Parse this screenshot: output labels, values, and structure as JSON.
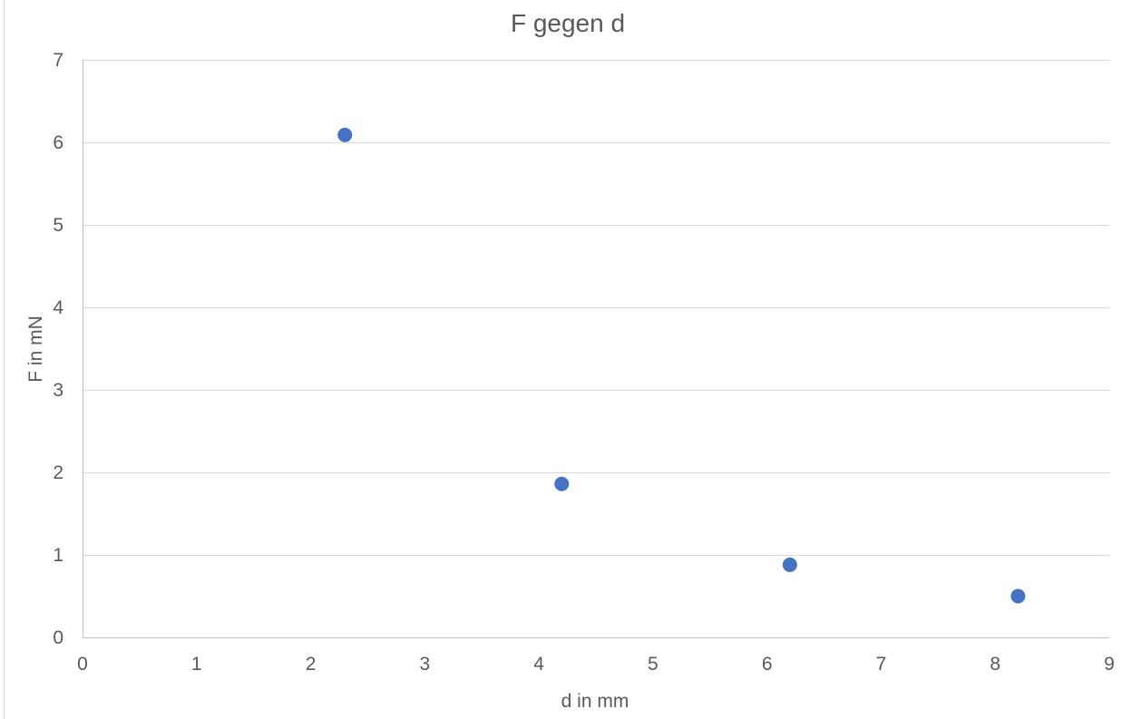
{
  "chart_data": {
    "type": "scatter",
    "title": "F gegen d",
    "xlabel": "d in mm",
    "ylabel": "F in mN",
    "xlim": [
      0,
      9
    ],
    "ylim": [
      0,
      7
    ],
    "xticks": [
      0,
      1,
      2,
      3,
      4,
      5,
      6,
      7,
      8,
      9
    ],
    "yticks": [
      0,
      1,
      2,
      3,
      4,
      5,
      6,
      7
    ],
    "grid": "horizontal",
    "legend": "none",
    "series": [
      {
        "color": "#4472c4",
        "points": [
          {
            "x": 2.3,
            "y": 6.09
          },
          {
            "x": 4.2,
            "y": 1.86
          },
          {
            "x": 6.2,
            "y": 0.88
          },
          {
            "x": 8.2,
            "y": 0.5
          }
        ]
      }
    ]
  }
}
